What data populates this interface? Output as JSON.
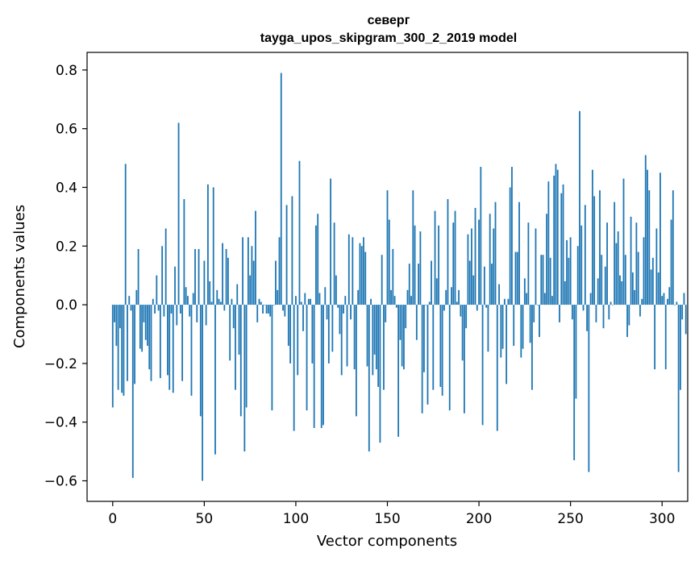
{
  "chart_data": {
    "type": "bar",
    "title_line1": "северг",
    "title_line2": "tayga_upos_skipgram_300_2_2019 model",
    "xlabel": "Vector components",
    "ylabel": "Components values",
    "xlim": [
      -14,
      314
    ],
    "ylim": [
      -0.67,
      0.86
    ],
    "xticks": [
      0,
      50,
      100,
      150,
      200,
      250,
      300
    ],
    "xtick_labels": [
      "0",
      "50",
      "100",
      "150",
      "200",
      "250",
      "300"
    ],
    "yticks": [
      -0.6,
      -0.4,
      -0.2,
      0.0,
      0.2,
      0.4,
      0.6,
      0.8
    ],
    "ytick_labels": [
      "−0.6",
      "−0.4",
      "−0.2",
      "0.0",
      "0.2",
      "0.4",
      "0.6",
      "0.8"
    ],
    "bar_color": "#1f77b4",
    "grid": false,
    "values": [
      -0.35,
      -0.06,
      -0.14,
      -0.29,
      -0.08,
      -0.3,
      -0.31,
      0.48,
      -0.26,
      0.03,
      -0.02,
      -0.59,
      -0.27,
      0.05,
      0.19,
      -0.15,
      -0.16,
      -0.06,
      -0.12,
      -0.14,
      -0.22,
      -0.26,
      0.02,
      -0.03,
      0.1,
      -0.02,
      -0.25,
      0.2,
      -0.04,
      0.26,
      -0.24,
      -0.29,
      -0.03,
      -0.3,
      0.13,
      -0.07,
      0.62,
      -0.03,
      -0.26,
      0.36,
      0.06,
      0.03,
      -0.04,
      -0.31,
      0.04,
      0.19,
      -0.06,
      0.19,
      -0.38,
      -0.6,
      0.15,
      -0.07,
      0.41,
      0.08,
      0.01,
      0.4,
      -0.51,
      0.05,
      0.02,
      0.01,
      0.21,
      -0.02,
      0.19,
      0.16,
      -0.19,
      0.02,
      -0.08,
      -0.29,
      0.07,
      -0.17,
      -0.38,
      0.23,
      -0.5,
      -0.35,
      0.23,
      0.1,
      0.2,
      0.15,
      0.32,
      -0.06,
      0.02,
      0.01,
      -0.03,
      0.0,
      -0.03,
      -0.03,
      -0.04,
      -0.36,
      0.0,
      0.15,
      0.05,
      0.23,
      0.79,
      -0.02,
      -0.04,
      0.34,
      -0.14,
      -0.2,
      0.37,
      -0.43,
      0.03,
      -0.24,
      0.49,
      0.01,
      -0.09,
      0.04,
      -0.36,
      0.02,
      0.02,
      -0.2,
      -0.42,
      0.27,
      0.31,
      0.04,
      -0.42,
      -0.41,
      0.06,
      -0.05,
      -0.2,
      0.43,
      -0.16,
      0.28,
      0.1,
      -0.01,
      -0.1,
      -0.24,
      -0.03,
      0.03,
      -0.21,
      0.24,
      -0.05,
      0.23,
      -0.22,
      -0.38,
      0.05,
      0.21,
      0.2,
      0.23,
      0.18,
      -0.21,
      -0.5,
      0.02,
      -0.24,
      -0.17,
      -0.22,
      -0.28,
      -0.47,
      0.17,
      -0.29,
      -0.06,
      0.39,
      0.29,
      0.05,
      0.19,
      0.03,
      -0.01,
      -0.45,
      -0.12,
      -0.21,
      -0.22,
      -0.08,
      0.05,
      0.14,
      0.03,
      0.39,
      0.27,
      -0.12,
      0.14,
      0.25,
      -0.37,
      -0.23,
      0.0,
      -0.34,
      0.01,
      0.15,
      -0.29,
      0.32,
      0.09,
      0.27,
      -0.28,
      -0.31,
      -0.02,
      0.05,
      0.36,
      -0.36,
      0.06,
      0.28,
      0.32,
      0.01,
      0.05,
      -0.04,
      -0.19,
      -0.37,
      -0.08,
      0.24,
      0.15,
      0.26,
      0.1,
      0.33,
      -0.02,
      0.29,
      0.47,
      -0.41,
      0.13,
      -0.01,
      -0.16,
      0.31,
      0.14,
      0.26,
      0.35,
      -0.43,
      0.07,
      -0.18,
      -0.15,
      0.02,
      -0.27,
      0.02,
      0.4,
      0.47,
      -0.14,
      0.18,
      0.18,
      0.35,
      -0.18,
      -0.15,
      0.09,
      0.04,
      0.28,
      -0.13,
      -0.29,
      -0.06,
      0.26,
      0.0,
      -0.11,
      0.17,
      0.17,
      0.04,
      0.31,
      0.42,
      0.16,
      0.03,
      0.44,
      0.48,
      0.46,
      -0.06,
      0.38,
      0.41,
      0.08,
      0.22,
      0.16,
      0.23,
      -0.05,
      -0.53,
      -0.32,
      0.2,
      0.66,
      0.27,
      -0.02,
      0.34,
      -0.09,
      -0.57,
      0.04,
      0.46,
      0.37,
      -0.06,
      0.09,
      0.39,
      0.17,
      -0.08,
      0.13,
      0.28,
      -0.05,
      0.01,
      0.0,
      0.35,
      0.21,
      0.25,
      0.1,
      0.08,
      0.43,
      0.17,
      -0.11,
      -0.07,
      0.3,
      0.11,
      0.05,
      0.28,
      0.18,
      -0.04,
      0.02,
      0.23,
      0.51,
      0.46,
      0.39,
      0.12,
      0.16,
      -0.22,
      0.26,
      0.11,
      0.45,
      0.03,
      0.04,
      -0.22,
      0.02,
      0.06,
      0.29,
      0.39,
      0.0,
      0.01,
      -0.57,
      -0.29,
      -0.05,
      0.04,
      -0.1
    ]
  }
}
